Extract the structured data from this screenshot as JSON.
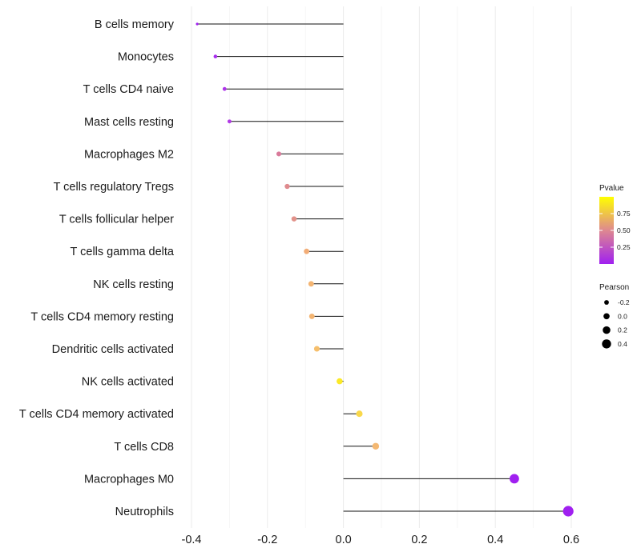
{
  "chart_data": {
    "type": "lollipop",
    "title": "",
    "xlabel": "",
    "ylabel": "",
    "xlim": [
      -0.4,
      0.6
    ],
    "xticks": [
      "-0.4",
      "-0.2",
      "0.0",
      "0.2",
      "0.4",
      "0.6"
    ],
    "grid": true,
    "points": [
      {
        "label": "B cells memory",
        "value": -0.385,
        "pvalue": 0.02,
        "color": "#a020f0"
      },
      {
        "label": "Monocytes",
        "value": -0.337,
        "pvalue": 0.06,
        "color": "#a82cee"
      },
      {
        "label": "T cells CD4 naive",
        "value": -0.313,
        "pvalue": 0.07,
        "color": "#ae34ea"
      },
      {
        "label": "Mast cells resting",
        "value": -0.3,
        "pvalue": 0.09,
        "color": "#b23ae6"
      },
      {
        "label": "Macrophages M2",
        "value": -0.17,
        "pvalue": 0.38,
        "color": "#d97a9a"
      },
      {
        "label": "T cells regulatory  Tregs ",
        "value": -0.148,
        "pvalue": 0.43,
        "color": "#df8a8e"
      },
      {
        "label": "T cells follicular helper",
        "value": -0.13,
        "pvalue": 0.48,
        "color": "#e2928a"
      },
      {
        "label": "T cells gamma delta",
        "value": -0.097,
        "pvalue": 0.62,
        "color": "#f2ad77"
      },
      {
        "label": "NK cells resting",
        "value": -0.085,
        "pvalue": 0.65,
        "color": "#f4b572"
      },
      {
        "label": "T cells CD4 memory resting",
        "value": -0.083,
        "pvalue": 0.65,
        "color": "#f4b572"
      },
      {
        "label": "Dendritic cells activated",
        "value": -0.07,
        "pvalue": 0.7,
        "color": "#f6bf6c"
      },
      {
        "label": "NK cells activated",
        "value": -0.01,
        "pvalue": 0.95,
        "color": "#fbe928"
      },
      {
        "label": "T cells CD4 memory activated",
        "value": 0.042,
        "pvalue": 0.85,
        "color": "#f9d84a"
      },
      {
        "label": "T cells CD8",
        "value": 0.085,
        "pvalue": 0.66,
        "color": "#f4b872"
      },
      {
        "label": "Macrophages M0",
        "value": 0.45,
        "pvalue": 0.01,
        "color": "#a020f0"
      },
      {
        "label": "Neutrophils",
        "value": 0.592,
        "pvalue": 0.01,
        "color": "#a020f0"
      }
    ],
    "legend_color": {
      "title": "Pvalue",
      "ticks": [
        "0.75",
        "0.50",
        "0.25"
      ],
      "tick_values": [
        0.75,
        0.5,
        0.25
      ],
      "range": [
        0.0,
        1.0
      ],
      "colors": [
        "#ffff00",
        "#de8890",
        "#a020f0"
      ]
    },
    "legend_size": {
      "title": "Pearson",
      "labels": [
        "-0.2",
        "0.0",
        "0.2",
        "0.4"
      ],
      "values": [
        -0.2,
        0.0,
        0.2,
        0.4
      ]
    }
  }
}
